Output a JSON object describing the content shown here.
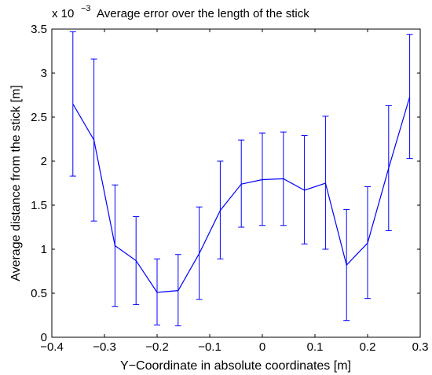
{
  "chart_data": {
    "type": "line",
    "title": "Average error over the length of the stick",
    "xlabel": "Y−Coordinate in absolute coordinates [m]",
    "ylabel": "Average distance from the stick [m]",
    "y_multiplier": {
      "base": "x 10",
      "exponent": "−3"
    },
    "xlim": [
      -0.4,
      0.3
    ],
    "ylim": [
      0,
      3.5
    ],
    "x_ticks": [
      {
        "value": -0.4,
        "label": "−0.4"
      },
      {
        "value": -0.3,
        "label": "−0.3"
      },
      {
        "value": -0.2,
        "label": "−0.2"
      },
      {
        "value": -0.1,
        "label": "−0.1"
      },
      {
        "value": 0,
        "label": "0"
      },
      {
        "value": 0.1,
        "label": "0.1"
      },
      {
        "value": 0.2,
        "label": "0.2"
      },
      {
        "value": 0.3,
        "label": "0.3"
      }
    ],
    "y_ticks": [
      {
        "value": 0,
        "label": "0"
      },
      {
        "value": 0.5,
        "label": "0.5"
      },
      {
        "value": 1,
        "label": "1"
      },
      {
        "value": 1.5,
        "label": "1.5"
      },
      {
        "value": 2,
        "label": "2"
      },
      {
        "value": 2.5,
        "label": "2.5"
      },
      {
        "value": 3,
        "label": "3"
      },
      {
        "value": 3.5,
        "label": "3.5"
      }
    ],
    "grid": false,
    "color": "#0000ff",
    "series": [
      {
        "x": [
          -0.36,
          -0.32,
          -0.28,
          -0.24,
          -0.2,
          -0.16,
          -0.12,
          -0.08,
          -0.04,
          0,
          0.04,
          0.08,
          0.12,
          0.16,
          0.2,
          0.24,
          0.28
        ],
        "y": [
          2.65,
          2.24,
          1.04,
          0.87,
          0.51,
          0.53,
          0.95,
          1.44,
          1.74,
          1.79,
          1.8,
          1.67,
          1.75,
          0.82,
          1.07,
          1.92,
          2.73
        ],
        "error_low": [
          1.83,
          1.32,
          0.35,
          0.37,
          0.14,
          0.13,
          0.43,
          0.89,
          1.25,
          1.27,
          1.27,
          1.06,
          1.0,
          0.19,
          0.44,
          1.21,
          2.03
        ],
        "error_high": [
          3.47,
          3.16,
          1.73,
          1.37,
          0.89,
          0.94,
          1.48,
          2.0,
          2.24,
          2.32,
          2.33,
          2.29,
          2.51,
          1.45,
          1.71,
          2.63,
          3.44
        ]
      }
    ]
  }
}
